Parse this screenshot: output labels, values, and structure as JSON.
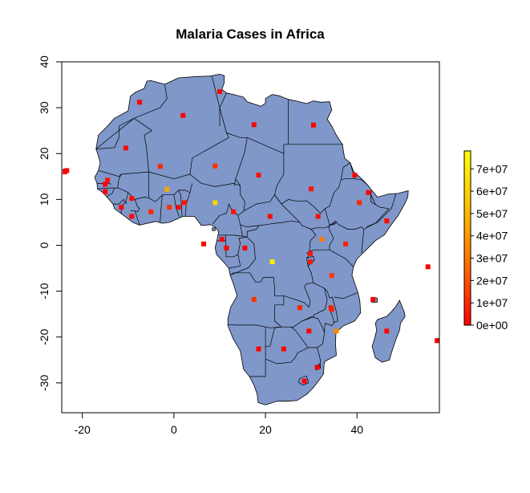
{
  "chart_data": {
    "type": "map",
    "title": "Malaria Cases in Africa",
    "xlabel": "",
    "ylabel": "",
    "xlim": [
      -24.5,
      58
    ],
    "ylim": [
      -36.5,
      40
    ],
    "x_ticks": [
      "-20",
      "0",
      "20",
      "40"
    ],
    "y_ticks": [
      "-30",
      "-20",
      "-10",
      "0",
      "10",
      "20",
      "30",
      "40"
    ],
    "land_color": "#7f97c9",
    "border_color": "#000000",
    "legend": {
      "position": "right",
      "min": 0,
      "max": 78000000,
      "colors": [
        "#ff0000",
        "#ff6a00",
        "#ffc000",
        "#ffff00"
      ],
      "labels": [
        "0e+00",
        "1e+07",
        "2e+07",
        "3e+07",
        "4e+07",
        "5e+07",
        "6e+07",
        "7e+07"
      ]
    },
    "points": [
      {
        "lon": -7.5,
        "lat": 31.2,
        "value": 500000
      },
      {
        "lon": 10.0,
        "lat": 33.5,
        "value": 200000
      },
      {
        "lon": 2.0,
        "lat": 28.3,
        "value": 400000
      },
      {
        "lon": 17.5,
        "lat": 26.3,
        "value": 300000
      },
      {
        "lon": 30.5,
        "lat": 26.2,
        "value": 600000
      },
      {
        "lon": -10.5,
        "lat": 21.2,
        "value": 1500000
      },
      {
        "lon": -3.0,
        "lat": 17.2,
        "value": 9000000
      },
      {
        "lon": 9.0,
        "lat": 17.3,
        "value": 12000000
      },
      {
        "lon": 18.5,
        "lat": 15.3,
        "value": 4000000
      },
      {
        "lon": 30.0,
        "lat": 12.3,
        "value": 5000000
      },
      {
        "lon": 39.5,
        "lat": 15.3,
        "value": 700000
      },
      {
        "lon": 42.5,
        "lat": 11.5,
        "value": 400000
      },
      {
        "lon": -14.5,
        "lat": 14.2,
        "value": 3000000
      },
      {
        "lon": -15.0,
        "lat": 13.3,
        "value": 300000
      },
      {
        "lon": -15.0,
        "lat": 11.7,
        "value": 500000
      },
      {
        "lon": -9.2,
        "lat": 10.2,
        "value": 4000000
      },
      {
        "lon": -1.5,
        "lat": 12.2,
        "value": 45000000
      },
      {
        "lon": 9.0,
        "lat": 9.3,
        "value": 60000000
      },
      {
        "lon": 2.3,
        "lat": 9.3,
        "value": 5000000
      },
      {
        "lon": -11.5,
        "lat": 8.3,
        "value": 2500000
      },
      {
        "lon": -9.2,
        "lat": 6.3,
        "value": 2000000
      },
      {
        "lon": -5.0,
        "lat": 7.3,
        "value": 10000000
      },
      {
        "lon": -1.0,
        "lat": 8.3,
        "value": 12000000
      },
      {
        "lon": 1.0,
        "lat": 8.3,
        "value": 2000000
      },
      {
        "lon": 40.5,
        "lat": 9.3,
        "value": 9000000
      },
      {
        "lon": 13.0,
        "lat": 7.3,
        "value": 4000000
      },
      {
        "lon": 21.0,
        "lat": 6.3,
        "value": 2000000
      },
      {
        "lon": 31.5,
        "lat": 6.3,
        "value": 3000000
      },
      {
        "lon": 46.5,
        "lat": 5.3,
        "value": 2000000
      },
      {
        "lon": 6.5,
        "lat": 0.3,
        "value": 100000
      },
      {
        "lon": 10.5,
        "lat": 1.3,
        "value": 400000
      },
      {
        "lon": 11.5,
        "lat": -0.6,
        "value": 700000
      },
      {
        "lon": 15.5,
        "lat": -0.6,
        "value": 1000000
      },
      {
        "lon": 32.3,
        "lat": 1.3,
        "value": 30000000
      },
      {
        "lon": 37.5,
        "lat": 0.3,
        "value": 8000000
      },
      {
        "lon": 21.5,
        "lat": -3.6,
        "value": 70000000
      },
      {
        "lon": 29.8,
        "lat": -1.8,
        "value": 5000000
      },
      {
        "lon": 29.8,
        "lat": -3.6,
        "value": 6000000
      },
      {
        "lon": 34.5,
        "lat": -6.6,
        "value": 13000000
      },
      {
        "lon": 17.5,
        "lat": -11.8,
        "value": 12000000
      },
      {
        "lon": 27.5,
        "lat": -13.6,
        "value": 8000000
      },
      {
        "lon": 34.3,
        "lat": -13.6,
        "value": 6000000
      },
      {
        "lon": 34.5,
        "lat": -14.0,
        "value": 8000000
      },
      {
        "lon": 43.5,
        "lat": -11.8,
        "value": 100000
      },
      {
        "lon": 55.5,
        "lat": -4.7,
        "value": 10000
      },
      {
        "lon": 29.5,
        "lat": -18.7,
        "value": 1000000
      },
      {
        "lon": 35.5,
        "lat": -18.7,
        "value": 35000000
      },
      {
        "lon": 46.5,
        "lat": -18.7,
        "value": 2000000
      },
      {
        "lon": 57.5,
        "lat": -20.8,
        "value": 10000
      },
      {
        "lon": 18.5,
        "lat": -22.6,
        "value": 200000
      },
      {
        "lon": 24.0,
        "lat": -22.6,
        "value": 300000
      },
      {
        "lon": 31.3,
        "lat": -26.6,
        "value": 400000
      },
      {
        "lon": 28.5,
        "lat": -29.6,
        "value": 10000
      },
      {
        "lon": -23.8,
        "lat": 16.0,
        "value": 50000
      },
      {
        "lon": -23.4,
        "lat": 16.3,
        "value": 50000
      }
    ]
  }
}
